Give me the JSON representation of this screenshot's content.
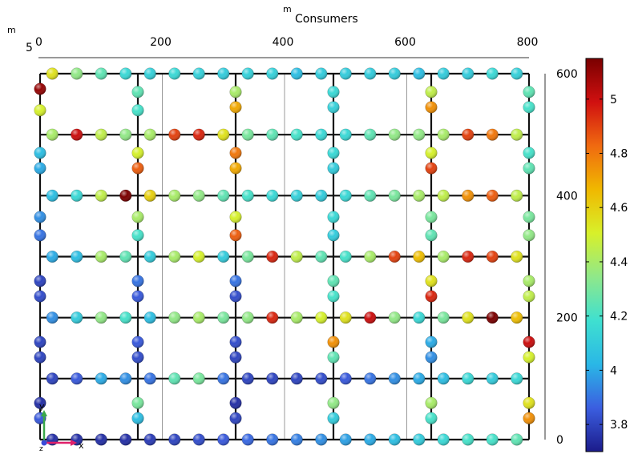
{
  "chart_data": {
    "type": "scatter",
    "title": "Consumers",
    "x_unit": "m",
    "y_unit": "m",
    "z_unit": "m",
    "x_axis": {
      "range": [
        0,
        800
      ],
      "ticks": [
        0,
        200,
        400,
        600,
        800
      ]
    },
    "y_axis": {
      "range": [
        0,
        600
      ],
      "ticks": [
        0,
        200,
        400,
        600
      ]
    },
    "z_axis_label": "5",
    "axes_triad": {
      "x": "x",
      "y": "y",
      "z": "z"
    },
    "grid": true,
    "colorbar": {
      "range": [
        3.7,
        5.15
      ],
      "ticks": [
        3.8,
        4,
        4.2,
        4.4,
        4.6,
        4.8,
        5
      ],
      "colormap": "rainbow",
      "stops": [
        "#1b1b8a",
        "#3b5ee0",
        "#2ab7e6",
        "#3fe0d0",
        "#8fe88a",
        "#d8f02a",
        "#f0b800",
        "#f06a10",
        "#d01010",
        "#7a0000"
      ]
    },
    "network": {
      "streets_x": [
        0,
        160,
        320,
        480,
        640,
        800
      ],
      "streets_y": [
        0,
        100,
        200,
        300,
        400,
        500,
        600
      ]
    },
    "points": [
      {
        "x": 20,
        "y": 600,
        "v": 4.55
      },
      {
        "x": 60,
        "y": 600,
        "v": 4.35
      },
      {
        "x": 100,
        "y": 600,
        "v": 4.25
      },
      {
        "x": 140,
        "y": 600,
        "v": 4.15
      },
      {
        "x": 180,
        "y": 600,
        "v": 4.12
      },
      {
        "x": 220,
        "y": 600,
        "v": 4.15
      },
      {
        "x": 260,
        "y": 600,
        "v": 4.12
      },
      {
        "x": 300,
        "y": 600,
        "v": 4.1
      },
      {
        "x": 340,
        "y": 600,
        "v": 4.12
      },
      {
        "x": 380,
        "y": 600,
        "v": 4.12
      },
      {
        "x": 420,
        "y": 600,
        "v": 4.05
      },
      {
        "x": 460,
        "y": 600,
        "v": 4.1
      },
      {
        "x": 500,
        "y": 600,
        "v": 4.1
      },
      {
        "x": 540,
        "y": 600,
        "v": 4.1
      },
      {
        "x": 580,
        "y": 600,
        "v": 4.1
      },
      {
        "x": 620,
        "y": 600,
        "v": 4.05
      },
      {
        "x": 660,
        "y": 600,
        "v": 4.1
      },
      {
        "x": 700,
        "y": 600,
        "v": 4.1
      },
      {
        "x": 740,
        "y": 600,
        "v": 4.15
      },
      {
        "x": 780,
        "y": 600,
        "v": 4.12
      },
      {
        "x": 0,
        "y": 575,
        "v": 5.1
      },
      {
        "x": 0,
        "y": 540,
        "v": 4.5
      },
      {
        "x": 160,
        "y": 570,
        "v": 4.25
      },
      {
        "x": 160,
        "y": 540,
        "v": 4.2
      },
      {
        "x": 320,
        "y": 570,
        "v": 4.4
      },
      {
        "x": 320,
        "y": 545,
        "v": 4.7
      },
      {
        "x": 480,
        "y": 570,
        "v": 4.15
      },
      {
        "x": 480,
        "y": 545,
        "v": 4.12
      },
      {
        "x": 640,
        "y": 570,
        "v": 4.45
      },
      {
        "x": 640,
        "y": 545,
        "v": 4.75
      },
      {
        "x": 800,
        "y": 570,
        "v": 4.25
      },
      {
        "x": 800,
        "y": 545,
        "v": 4.2
      },
      {
        "x": 20,
        "y": 500,
        "v": 4.4
      },
      {
        "x": 60,
        "y": 500,
        "v": 5.0
      },
      {
        "x": 100,
        "y": 500,
        "v": 4.45
      },
      {
        "x": 140,
        "y": 500,
        "v": 4.35
      },
      {
        "x": 180,
        "y": 500,
        "v": 4.4
      },
      {
        "x": 220,
        "y": 500,
        "v": 4.9
      },
      {
        "x": 260,
        "y": 500,
        "v": 4.95
      },
      {
        "x": 300,
        "y": 500,
        "v": 4.55
      },
      {
        "x": 340,
        "y": 500,
        "v": 4.3
      },
      {
        "x": 380,
        "y": 500,
        "v": 4.25
      },
      {
        "x": 420,
        "y": 500,
        "v": 4.2
      },
      {
        "x": 460,
        "y": 500,
        "v": 4.15
      },
      {
        "x": 500,
        "y": 500,
        "v": 4.15
      },
      {
        "x": 540,
        "y": 500,
        "v": 4.25
      },
      {
        "x": 580,
        "y": 500,
        "v": 4.35
      },
      {
        "x": 620,
        "y": 500,
        "v": 4.35
      },
      {
        "x": 660,
        "y": 500,
        "v": 4.4
      },
      {
        "x": 700,
        "y": 500,
        "v": 4.9
      },
      {
        "x": 740,
        "y": 500,
        "v": 4.8
      },
      {
        "x": 780,
        "y": 500,
        "v": 4.45
      },
      {
        "x": 0,
        "y": 470,
        "v": 4.05
      },
      {
        "x": 0,
        "y": 445,
        "v": 4.0
      },
      {
        "x": 160,
        "y": 470,
        "v": 4.5
      },
      {
        "x": 160,
        "y": 445,
        "v": 4.85
      },
      {
        "x": 320,
        "y": 470,
        "v": 4.8
      },
      {
        "x": 320,
        "y": 445,
        "v": 4.7
      },
      {
        "x": 480,
        "y": 470,
        "v": 4.15
      },
      {
        "x": 480,
        "y": 445,
        "v": 4.1
      },
      {
        "x": 640,
        "y": 470,
        "v": 4.5
      },
      {
        "x": 640,
        "y": 445,
        "v": 4.9
      },
      {
        "x": 800,
        "y": 470,
        "v": 4.2
      },
      {
        "x": 800,
        "y": 445,
        "v": 4.25
      },
      {
        "x": 20,
        "y": 400,
        "v": 4.05
      },
      {
        "x": 60,
        "y": 400,
        "v": 4.15
      },
      {
        "x": 100,
        "y": 400,
        "v": 4.45
      },
      {
        "x": 140,
        "y": 400,
        "v": 5.15
      },
      {
        "x": 180,
        "y": 400,
        "v": 4.6
      },
      {
        "x": 220,
        "y": 400,
        "v": 4.4
      },
      {
        "x": 260,
        "y": 400,
        "v": 4.35
      },
      {
        "x": 300,
        "y": 400,
        "v": 4.25
      },
      {
        "x": 340,
        "y": 400,
        "v": 4.2
      },
      {
        "x": 380,
        "y": 400,
        "v": 4.15
      },
      {
        "x": 420,
        "y": 400,
        "v": 4.12
      },
      {
        "x": 460,
        "y": 400,
        "v": 4.1
      },
      {
        "x": 500,
        "y": 400,
        "v": 4.15
      },
      {
        "x": 540,
        "y": 400,
        "v": 4.25
      },
      {
        "x": 580,
        "y": 400,
        "v": 4.3
      },
      {
        "x": 620,
        "y": 400,
        "v": 4.4
      },
      {
        "x": 660,
        "y": 400,
        "v": 4.45
      },
      {
        "x": 700,
        "y": 400,
        "v": 4.75
      },
      {
        "x": 740,
        "y": 400,
        "v": 4.85
      },
      {
        "x": 780,
        "y": 400,
        "v": 4.45
      },
      {
        "x": 0,
        "y": 365,
        "v": 3.95
      },
      {
        "x": 0,
        "y": 335,
        "v": 3.9
      },
      {
        "x": 160,
        "y": 365,
        "v": 4.4
      },
      {
        "x": 160,
        "y": 335,
        "v": 4.2
      },
      {
        "x": 320,
        "y": 365,
        "v": 4.5
      },
      {
        "x": 320,
        "y": 335,
        "v": 4.85
      },
      {
        "x": 480,
        "y": 365,
        "v": 4.15
      },
      {
        "x": 480,
        "y": 335,
        "v": 4.1
      },
      {
        "x": 640,
        "y": 365,
        "v": 4.3
      },
      {
        "x": 640,
        "y": 335,
        "v": 4.25
      },
      {
        "x": 800,
        "y": 365,
        "v": 4.3
      },
      {
        "x": 800,
        "y": 335,
        "v": 4.35
      },
      {
        "x": 20,
        "y": 300,
        "v": 4.0
      },
      {
        "x": 60,
        "y": 300,
        "v": 4.05
      },
      {
        "x": 100,
        "y": 300,
        "v": 4.4
      },
      {
        "x": 140,
        "y": 300,
        "v": 4.25
      },
      {
        "x": 180,
        "y": 300,
        "v": 4.1
      },
      {
        "x": 220,
        "y": 300,
        "v": 4.4
      },
      {
        "x": 260,
        "y": 300,
        "v": 4.5
      },
      {
        "x": 300,
        "y": 300,
        "v": 4.1
      },
      {
        "x": 340,
        "y": 300,
        "v": 4.3
      },
      {
        "x": 380,
        "y": 300,
        "v": 4.95
      },
      {
        "x": 420,
        "y": 300,
        "v": 4.45
      },
      {
        "x": 460,
        "y": 300,
        "v": 4.25
      },
      {
        "x": 500,
        "y": 300,
        "v": 4.2
      },
      {
        "x": 540,
        "y": 300,
        "v": 4.4
      },
      {
        "x": 580,
        "y": 300,
        "v": 4.9
      },
      {
        "x": 620,
        "y": 300,
        "v": 4.65
      },
      {
        "x": 660,
        "y": 300,
        "v": 4.4
      },
      {
        "x": 700,
        "y": 300,
        "v": 4.95
      },
      {
        "x": 740,
        "y": 300,
        "v": 4.9
      },
      {
        "x": 780,
        "y": 300,
        "v": 4.55
      },
      {
        "x": 0,
        "y": 260,
        "v": 3.8
      },
      {
        "x": 0,
        "y": 235,
        "v": 3.82
      },
      {
        "x": 160,
        "y": 260,
        "v": 3.9
      },
      {
        "x": 160,
        "y": 235,
        "v": 3.85
      },
      {
        "x": 320,
        "y": 260,
        "v": 3.9
      },
      {
        "x": 320,
        "y": 235,
        "v": 3.82
      },
      {
        "x": 480,
        "y": 260,
        "v": 4.25
      },
      {
        "x": 480,
        "y": 235,
        "v": 4.2
      },
      {
        "x": 640,
        "y": 260,
        "v": 4.55
      },
      {
        "x": 640,
        "y": 235,
        "v": 4.95
      },
      {
        "x": 800,
        "y": 260,
        "v": 4.4
      },
      {
        "x": 800,
        "y": 235,
        "v": 4.45
      },
      {
        "x": 20,
        "y": 200,
        "v": 3.95
      },
      {
        "x": 60,
        "y": 200,
        "v": 4.1
      },
      {
        "x": 100,
        "y": 200,
        "v": 4.35
      },
      {
        "x": 140,
        "y": 200,
        "v": 4.2
      },
      {
        "x": 180,
        "y": 200,
        "v": 4.05
      },
      {
        "x": 220,
        "y": 200,
        "v": 4.35
      },
      {
        "x": 260,
        "y": 200,
        "v": 4.4
      },
      {
        "x": 300,
        "y": 200,
        "v": 4.3
      },
      {
        "x": 340,
        "y": 200,
        "v": 4.35
      },
      {
        "x": 380,
        "y": 200,
        "v": 4.95
      },
      {
        "x": 420,
        "y": 200,
        "v": 4.4
      },
      {
        "x": 460,
        "y": 200,
        "v": 4.5
      },
      {
        "x": 500,
        "y": 200,
        "v": 4.55
      },
      {
        "x": 540,
        "y": 200,
        "v": 5.0
      },
      {
        "x": 580,
        "y": 200,
        "v": 4.35
      },
      {
        "x": 620,
        "y": 200,
        "v": 4.15
      },
      {
        "x": 660,
        "y": 200,
        "v": 4.3
      },
      {
        "x": 700,
        "y": 200,
        "v": 4.55
      },
      {
        "x": 740,
        "y": 200,
        "v": 5.15
      },
      {
        "x": 780,
        "y": 200,
        "v": 4.65
      },
      {
        "x": 0,
        "y": 160,
        "v": 3.8
      },
      {
        "x": 0,
        "y": 135,
        "v": 3.8
      },
      {
        "x": 160,
        "y": 160,
        "v": 3.85
      },
      {
        "x": 160,
        "y": 135,
        "v": 3.82
      },
      {
        "x": 320,
        "y": 160,
        "v": 3.82
      },
      {
        "x": 320,
        "y": 135,
        "v": 3.8
      },
      {
        "x": 480,
        "y": 160,
        "v": 4.75
      },
      {
        "x": 480,
        "y": 135,
        "v": 4.25
      },
      {
        "x": 640,
        "y": 160,
        "v": 4.0
      },
      {
        "x": 640,
        "y": 135,
        "v": 3.95
      },
      {
        "x": 800,
        "y": 160,
        "v": 5.0
      },
      {
        "x": 800,
        "y": 135,
        "v": 4.5
      },
      {
        "x": 20,
        "y": 100,
        "v": 3.8
      },
      {
        "x": 60,
        "y": 100,
        "v": 3.85
      },
      {
        "x": 100,
        "y": 100,
        "v": 4.0
      },
      {
        "x": 140,
        "y": 100,
        "v": 3.95
      },
      {
        "x": 180,
        "y": 100,
        "v": 3.9
      },
      {
        "x": 220,
        "y": 100,
        "v": 4.25
      },
      {
        "x": 260,
        "y": 100,
        "v": 4.3
      },
      {
        "x": 300,
        "y": 100,
        "v": 3.9
      },
      {
        "x": 340,
        "y": 100,
        "v": 3.8
      },
      {
        "x": 380,
        "y": 100,
        "v": 3.8
      },
      {
        "x": 420,
        "y": 100,
        "v": 3.8
      },
      {
        "x": 460,
        "y": 100,
        "v": 3.82
      },
      {
        "x": 500,
        "y": 100,
        "v": 3.85
      },
      {
        "x": 540,
        "y": 100,
        "v": 3.9
      },
      {
        "x": 580,
        "y": 100,
        "v": 3.95
      },
      {
        "x": 620,
        "y": 100,
        "v": 4.0
      },
      {
        "x": 660,
        "y": 100,
        "v": 4.05
      },
      {
        "x": 700,
        "y": 100,
        "v": 4.15
      },
      {
        "x": 740,
        "y": 100,
        "v": 4.1
      },
      {
        "x": 780,
        "y": 100,
        "v": 4.15
      },
      {
        "x": 0,
        "y": 60,
        "v": 3.75
      },
      {
        "x": 0,
        "y": 35,
        "v": 3.85
      },
      {
        "x": 160,
        "y": 60,
        "v": 4.3
      },
      {
        "x": 160,
        "y": 35,
        "v": 4.05
      },
      {
        "x": 320,
        "y": 60,
        "v": 3.75
      },
      {
        "x": 320,
        "y": 35,
        "v": 3.8
      },
      {
        "x": 480,
        "y": 60,
        "v": 4.35
      },
      {
        "x": 480,
        "y": 35,
        "v": 4.1
      },
      {
        "x": 640,
        "y": 60,
        "v": 4.4
      },
      {
        "x": 640,
        "y": 35,
        "v": 4.2
      },
      {
        "x": 800,
        "y": 60,
        "v": 4.55
      },
      {
        "x": 800,
        "y": 35,
        "v": 4.75
      },
      {
        "x": 20,
        "y": 0,
        "v": 3.75
      },
      {
        "x": 60,
        "y": 0,
        "v": 3.75
      },
      {
        "x": 100,
        "y": 0,
        "v": 3.75
      },
      {
        "x": 140,
        "y": 0,
        "v": 3.75
      },
      {
        "x": 180,
        "y": 0,
        "v": 3.78
      },
      {
        "x": 220,
        "y": 0,
        "v": 3.8
      },
      {
        "x": 260,
        "y": 0,
        "v": 3.82
      },
      {
        "x": 300,
        "y": 0,
        "v": 3.85
      },
      {
        "x": 340,
        "y": 0,
        "v": 3.88
      },
      {
        "x": 380,
        "y": 0,
        "v": 3.9
      },
      {
        "x": 420,
        "y": 0,
        "v": 3.92
      },
      {
        "x": 460,
        "y": 0,
        "v": 3.95
      },
      {
        "x": 500,
        "y": 0,
        "v": 3.98
      },
      {
        "x": 540,
        "y": 0,
        "v": 4.0
      },
      {
        "x": 580,
        "y": 0,
        "v": 4.05
      },
      {
        "x": 620,
        "y": 0,
        "v": 4.1
      },
      {
        "x": 660,
        "y": 0,
        "v": 4.15
      },
      {
        "x": 700,
        "y": 0,
        "v": 4.2
      },
      {
        "x": 740,
        "y": 0,
        "v": 4.2
      },
      {
        "x": 780,
        "y": 0,
        "v": 4.25
      }
    ]
  }
}
